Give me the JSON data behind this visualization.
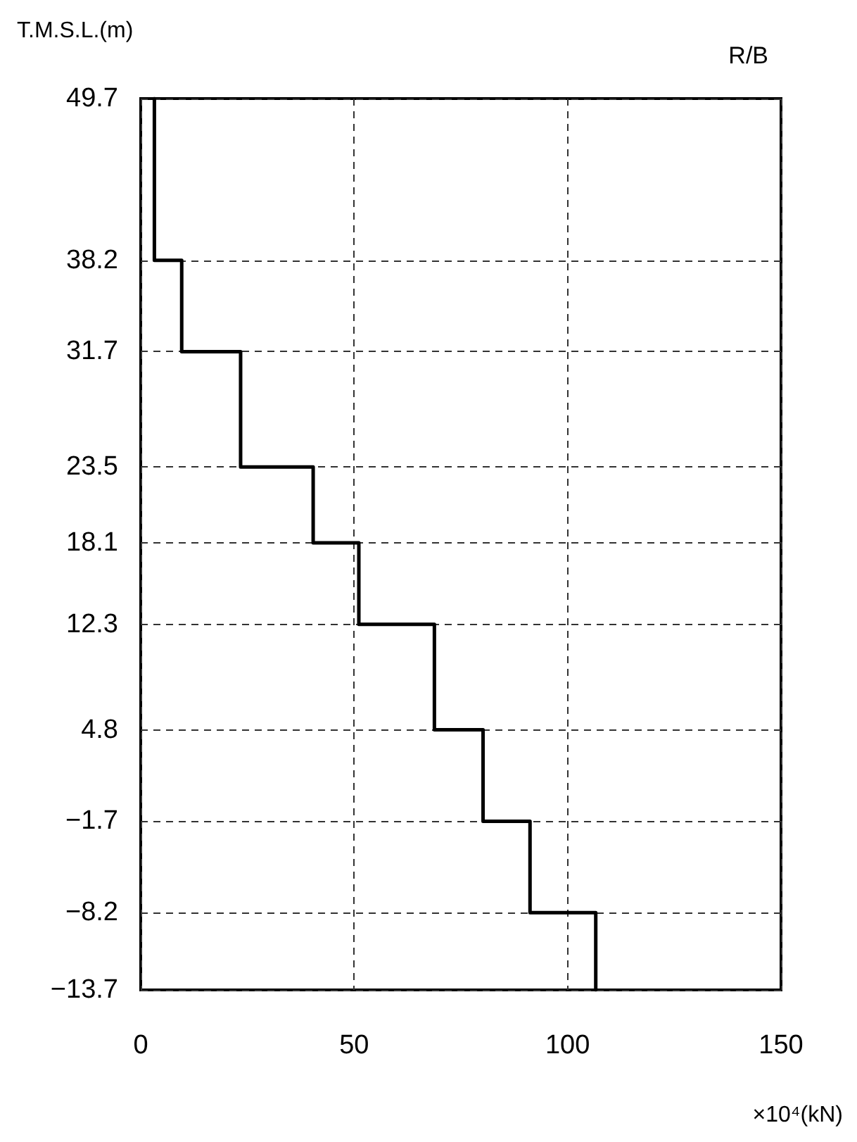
{
  "chart_data": {
    "type": "step",
    "title": "R/B",
    "xlabel": "×10⁴(kN)",
    "ylabel": "T.M.S.L.(m)",
    "x": [
      3.2,
      9.6,
      23.4,
      40.4,
      51.1,
      68.8,
      80.2,
      91.2,
      106.6,
      106.6
    ],
    "values": [
      49.7,
      38.2,
      31.7,
      23.5,
      18.1,
      12.3,
      4.8,
      -1.7,
      -8.2,
      -13.7
    ],
    "color": "#000000",
    "marker": "none",
    "line_style": "solid",
    "xlim": [
      0,
      150
    ],
    "xticks": [
      0,
      50,
      100,
      150
    ],
    "ylim": [
      -13.7,
      49.7
    ],
    "yticks": [
      {
        "value": -13.7,
        "label": "−13.7"
      },
      {
        "value": -8.2,
        "label": "−8.2"
      },
      {
        "value": -1.7,
        "label": "−1.7"
      },
      4.8,
      12.3,
      18.1,
      23.5,
      31.7,
      38.2,
      49.7
    ],
    "grid": true
  }
}
